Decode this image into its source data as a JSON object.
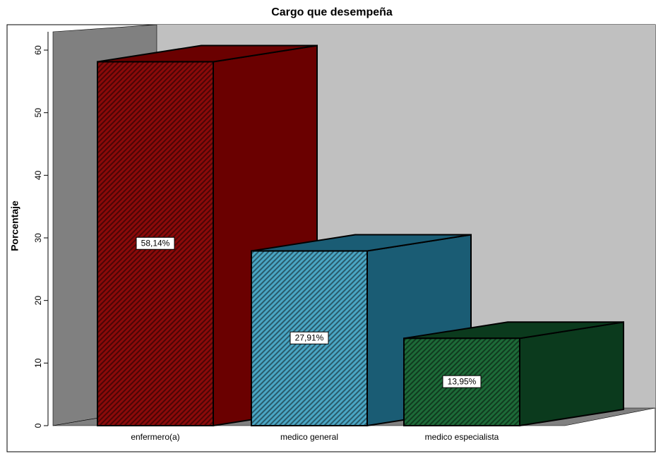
{
  "chart_data": {
    "type": "bar3d",
    "title": "Cargo que desempeña",
    "y_label": "Porcentaje",
    "categories": [
      "enfermero(a)",
      "medico general",
      "medico especialista"
    ],
    "values": [
      58.14,
      27.91,
      13.95
    ],
    "value_labels": [
      "58,14%",
      "27,91%",
      "13,95%"
    ],
    "colors": [
      "#8b0a0a",
      "#4aa6c4",
      "#1d6b38"
    ],
    "side_colors": [
      "#6a0000",
      "#1a5c74",
      "#0b3a1d"
    ],
    "ylim": [
      0,
      63
    ],
    "yticks": [
      0,
      10,
      20,
      30,
      40,
      50,
      60
    ]
  }
}
